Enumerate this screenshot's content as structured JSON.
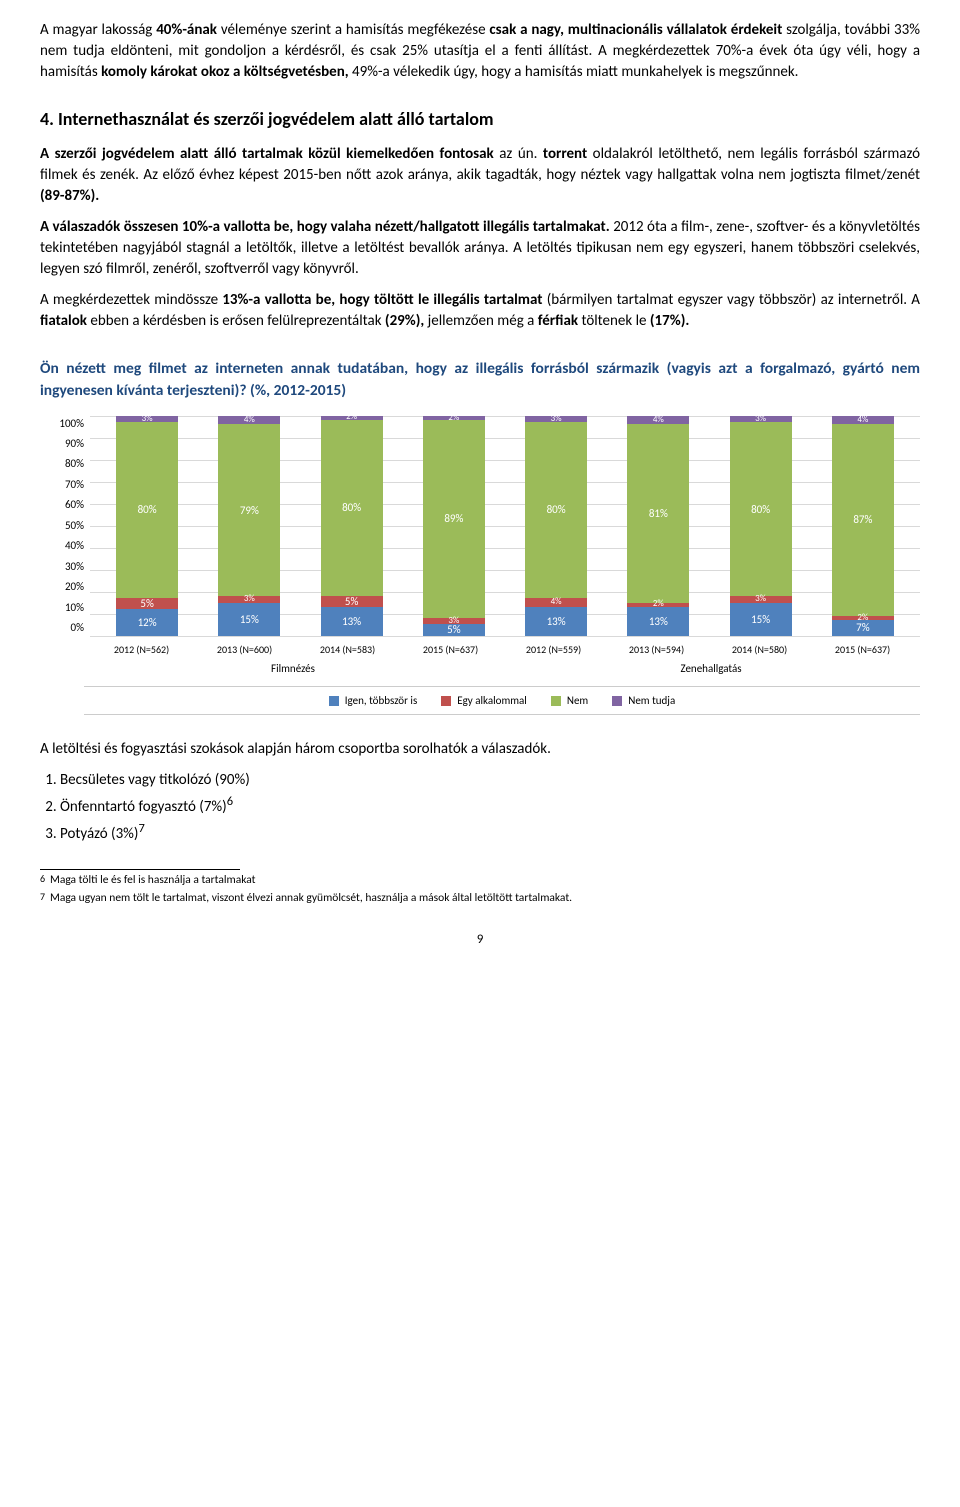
{
  "intro": {
    "p1_a": "A magyar lakosság ",
    "p1_b": "40%-ának",
    "p1_c": " véleménye szerint a hamisítás megfékezése ",
    "p1_d": "csak a nagy, multinacionális vállalatok érdekeit",
    "p1_e": " szolgálja, további 33% nem tudja eldönteni, mit gondoljon a kérdésről, és csak 25% utasítja el a fenti állítást. A megkérdezettek 70%-a évek óta úgy véli, hogy a hamisítás ",
    "p1_f": "komoly károkat okoz a költségvetésben,",
    "p1_g": " 49%-a vélekedik úgy, hogy a hamisítás miatt munkahelyek is megszűnnek."
  },
  "section4": {
    "title": "4.   Internethasználat és szerzői jogvédelem alatt álló tartalom",
    "p1_a": "A szerzői jogvédelem alatt álló tartalmak közül kiemelkedően fontosak",
    "p1_b": " az ún. ",
    "p1_c": "torrent",
    "p1_d": " oldalakról letölthető, nem legális forrásból származó filmek és zenék. Az előző évhez képest 2015-ben nőtt azok aránya, akik tagadták, hogy néztek vagy hallgattak volna nem jogtiszta filmet/zenét ",
    "p1_e": "(89-87%).",
    "p2_a": "A válaszadók összesen 10%-a vallotta be, hogy valaha nézett/hallgatott illegális tartalmakat.",
    "p2_b": " 2012 óta a film-, zene-, szoftver- és a könyvletöltés tekintetében nagyjából stagnál a letöltők, illetve a letöltést bevallók aránya. A letöltés tipikusan nem egy egyszeri, hanem többszöri cselekvés, legyen szó filmről, zenéről, szoftverről vagy könyvről.",
    "p3_a": "A megkérdezettek mindössze ",
    "p3_b": "13%-a vallotta be, hogy töltött le illegális tartalmat",
    "p3_c": " (bármilyen tartalmat egyszer vagy többször) az internetről. A ",
    "p3_d": "fiatalok",
    "p3_e": " ebben a kérdésben is erősen felülreprezentáltak ",
    "p3_f": "(29%),",
    "p3_g": " jellemzően még a ",
    "p3_h": "férfiak",
    "p3_i": " töltenek le ",
    "p3_j": "(17%)."
  },
  "chart": {
    "title": "Ön nézett meg filmet az interneten annak tudatában, hogy az illegális forrásból származik (vagyis azt a forgalmazó, gyártó nem ingyenesen kívánta terjeszteni)? (%, 2012-2015)",
    "yticks": [
      "100%",
      "90%",
      "80%",
      "70%",
      "60%",
      "50%",
      "40%",
      "30%",
      "20%",
      "10%",
      "0%"
    ],
    "colors": {
      "igen": "#4f81bd",
      "egy": "#c0504d",
      "nem": "#9bbb59",
      "nt": "#8064a2",
      "grid": "#d9d9d9"
    },
    "bars": [
      {
        "x": "2012 (N=562)",
        "igen": 12,
        "egy": 5,
        "nem": 80,
        "nt": 3
      },
      {
        "x": "2013 (N=600)",
        "igen": 15,
        "egy": 3,
        "nem": 79,
        "nt": 4
      },
      {
        "x": "2014 (N=583)",
        "igen": 13,
        "egy": 5,
        "nem": 80,
        "nt": 2
      },
      {
        "x": "2015 (N=637)",
        "igen": 5,
        "egy": 3,
        "nem": 89,
        "nt": 2
      },
      {
        "x": "2012 (N=559)",
        "igen": 13,
        "egy": 4,
        "nem": 80,
        "nt": 3
      },
      {
        "x": "2013 (N=594)",
        "igen": 13,
        "egy": 2,
        "nem": 81,
        "nt": 4
      },
      {
        "x": "2014 (N=580)",
        "igen": 15,
        "egy": 3,
        "nem": 80,
        "nt": 3
      },
      {
        "x": "2015 (N=637)",
        "igen": 7,
        "egy": 2,
        "nem": 87,
        "nt": 4
      }
    ],
    "groups": [
      "Filmnézés",
      "Zenehallgatás"
    ],
    "legend": {
      "igen": "Igen, többször is",
      "egy": "Egy alkalommal",
      "nem": "Nem",
      "nt": "Nem tudja"
    }
  },
  "below": {
    "p": "A letöltési és fogyasztási szokások alapján három csoportba sorolhatók a válaszadók.",
    "li1": "Becsületes vagy titkolózó (90%)",
    "li2_a": "Önfenntartó fogyasztó (7%)",
    "li2_sup": "6",
    "li3_a": "Potyázó (3%)",
    "li3_sup": "7"
  },
  "footnotes": {
    "fn6_n": "6",
    "fn6": "Maga tölti le és fel is használja a tartalmakat",
    "fn7_n": "7",
    "fn7": "Maga ugyan nem tölt le tartalmat, viszont élvezi annak gyümölcsét, használja a mások által letöltött tartalmakat."
  },
  "pagenum": "9"
}
